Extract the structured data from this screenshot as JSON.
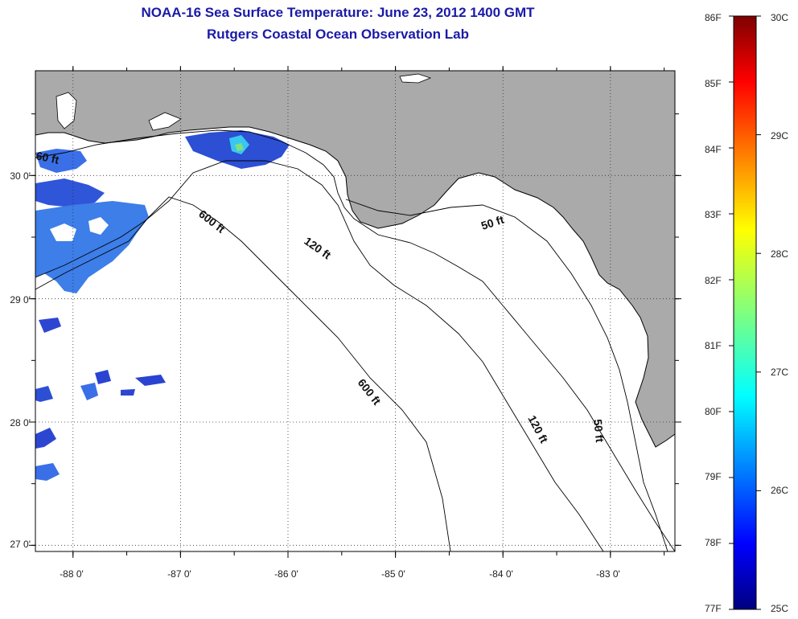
{
  "title": {
    "line1": "NOAA-16 Sea Surface Temperature:  June 23, 2012 1400 GMT",
    "line2": "Rutgers Coastal Ocean Observation Lab"
  },
  "map": {
    "lon_range": [
      -88.35,
      -82.4
    ],
    "lat_range": [
      26.95,
      30.85
    ],
    "lat_ticks": [
      {
        "value": 30,
        "label": "30 0'"
      },
      {
        "value": 29,
        "label": "29 0'"
      },
      {
        "value": 28,
        "label": "28 0'"
      },
      {
        "value": 27,
        "label": "27 0'"
      }
    ],
    "lon_ticks": [
      {
        "value": -88,
        "label": "-88 0'"
      },
      {
        "value": -87,
        "label": "-87 0'"
      },
      {
        "value": -86,
        "label": "-86 0'"
      },
      {
        "value": -85,
        "label": "-85 0'"
      },
      {
        "value": -84,
        "label": "-84 0'"
      },
      {
        "value": -83,
        "label": "-83 0'"
      }
    ],
    "contour_labels": [
      {
        "text": "60 ft"
      },
      {
        "text": "600 ft"
      },
      {
        "text": "120 ft"
      },
      {
        "text": "50 ft"
      },
      {
        "text": "600 ft"
      },
      {
        "text": "120 ft"
      },
      {
        "text": "50 ft"
      }
    ],
    "land_color": "#aaaaaa",
    "ocean_color": "#ffffff"
  },
  "colorbar": {
    "fahrenheit_labels": [
      "86F",
      "85F",
      "84F",
      "83F",
      "82F",
      "81F",
      "80F",
      "79F",
      "78F",
      "77F"
    ],
    "celsius_labels": [
      "30C",
      "29C",
      "28C",
      "27C",
      "26C",
      "25C"
    ],
    "range_c": [
      25,
      30
    ],
    "colormap": "jet"
  }
}
